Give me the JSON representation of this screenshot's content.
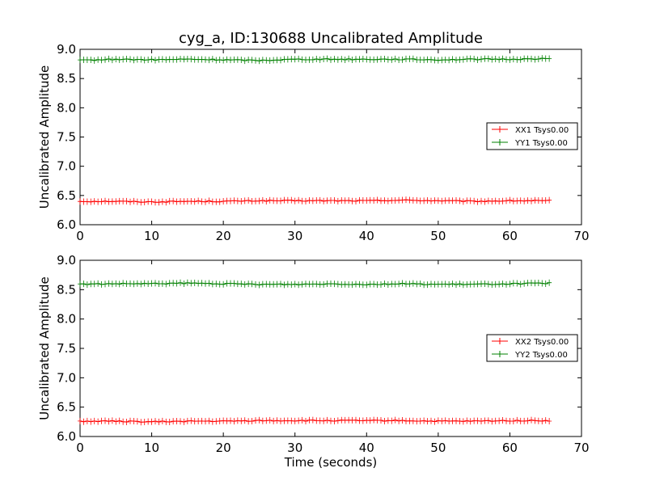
{
  "figure": {
    "title": "cyg_a, ID:130688 Uncalibrated Amplitude"
  },
  "colors": {
    "xx": "#ff0000",
    "yy": "#008000",
    "axis": "#000000"
  },
  "chart_data": [
    {
      "type": "line",
      "title": "cyg_a, ID:130688 Uncalibrated Amplitude",
      "xlabel": "",
      "ylabel": "Uncalibrated Amplitude",
      "xlim": [
        0,
        70
      ],
      "ylim": [
        6.0,
        9.0
      ],
      "xticks": [
        "0",
        "10",
        "20",
        "30",
        "40",
        "50",
        "60",
        "70"
      ],
      "yticks": [
        "6.0",
        "6.5",
        "7.0",
        "7.5",
        "8.0",
        "8.5",
        "9.0"
      ],
      "legend_position": "center-right",
      "grid": false,
      "marker": "plus",
      "series": [
        {
          "name": "XX1 Tsys0.00",
          "color": "#ff0000",
          "x": [
            0,
            5,
            10,
            15,
            20,
            25,
            30,
            35,
            40,
            45,
            50,
            55,
            60,
            65.5
          ],
          "y": [
            6.4,
            6.4,
            6.39,
            6.4,
            6.4,
            6.41,
            6.41,
            6.41,
            6.41,
            6.42,
            6.41,
            6.4,
            6.41,
            6.41
          ]
        },
        {
          "name": "YY1 Tsys0.00",
          "color": "#008000",
          "x": [
            0,
            5,
            10,
            15,
            20,
            25,
            30,
            35,
            40,
            45,
            50,
            55,
            60,
            65.5
          ],
          "y": [
            8.81,
            8.83,
            8.82,
            8.83,
            8.82,
            8.81,
            8.83,
            8.83,
            8.83,
            8.83,
            8.82,
            8.83,
            8.83,
            8.84
          ]
        }
      ]
    },
    {
      "type": "line",
      "title": "",
      "xlabel": "Time (seconds)",
      "ylabel": "Uncalibrated Amplitude",
      "xlim": [
        0,
        70
      ],
      "ylim": [
        6.0,
        9.0
      ],
      "xticks": [
        "0",
        "10",
        "20",
        "30",
        "40",
        "50",
        "60",
        "70"
      ],
      "yticks": [
        "6.0",
        "6.5",
        "7.0",
        "7.5",
        "8.0",
        "8.5",
        "9.0"
      ],
      "legend_position": "center-right",
      "grid": false,
      "marker": "plus",
      "series": [
        {
          "name": "XX2 Tsys0.00",
          "color": "#ff0000",
          "x": [
            0,
            5,
            10,
            15,
            20,
            25,
            30,
            35,
            40,
            45,
            50,
            55,
            60,
            65.5
          ],
          "y": [
            6.26,
            6.26,
            6.25,
            6.26,
            6.26,
            6.27,
            6.27,
            6.27,
            6.27,
            6.27,
            6.26,
            6.26,
            6.27,
            6.27
          ]
        },
        {
          "name": "YY2 Tsys0.00",
          "color": "#008000",
          "x": [
            0,
            5,
            10,
            15,
            20,
            25,
            30,
            35,
            40,
            45,
            50,
            55,
            60,
            65.5
          ],
          "y": [
            8.59,
            8.6,
            8.6,
            8.61,
            8.6,
            8.59,
            8.59,
            8.6,
            8.59,
            8.6,
            8.59,
            8.59,
            8.6,
            8.61
          ]
        }
      ]
    }
  ]
}
